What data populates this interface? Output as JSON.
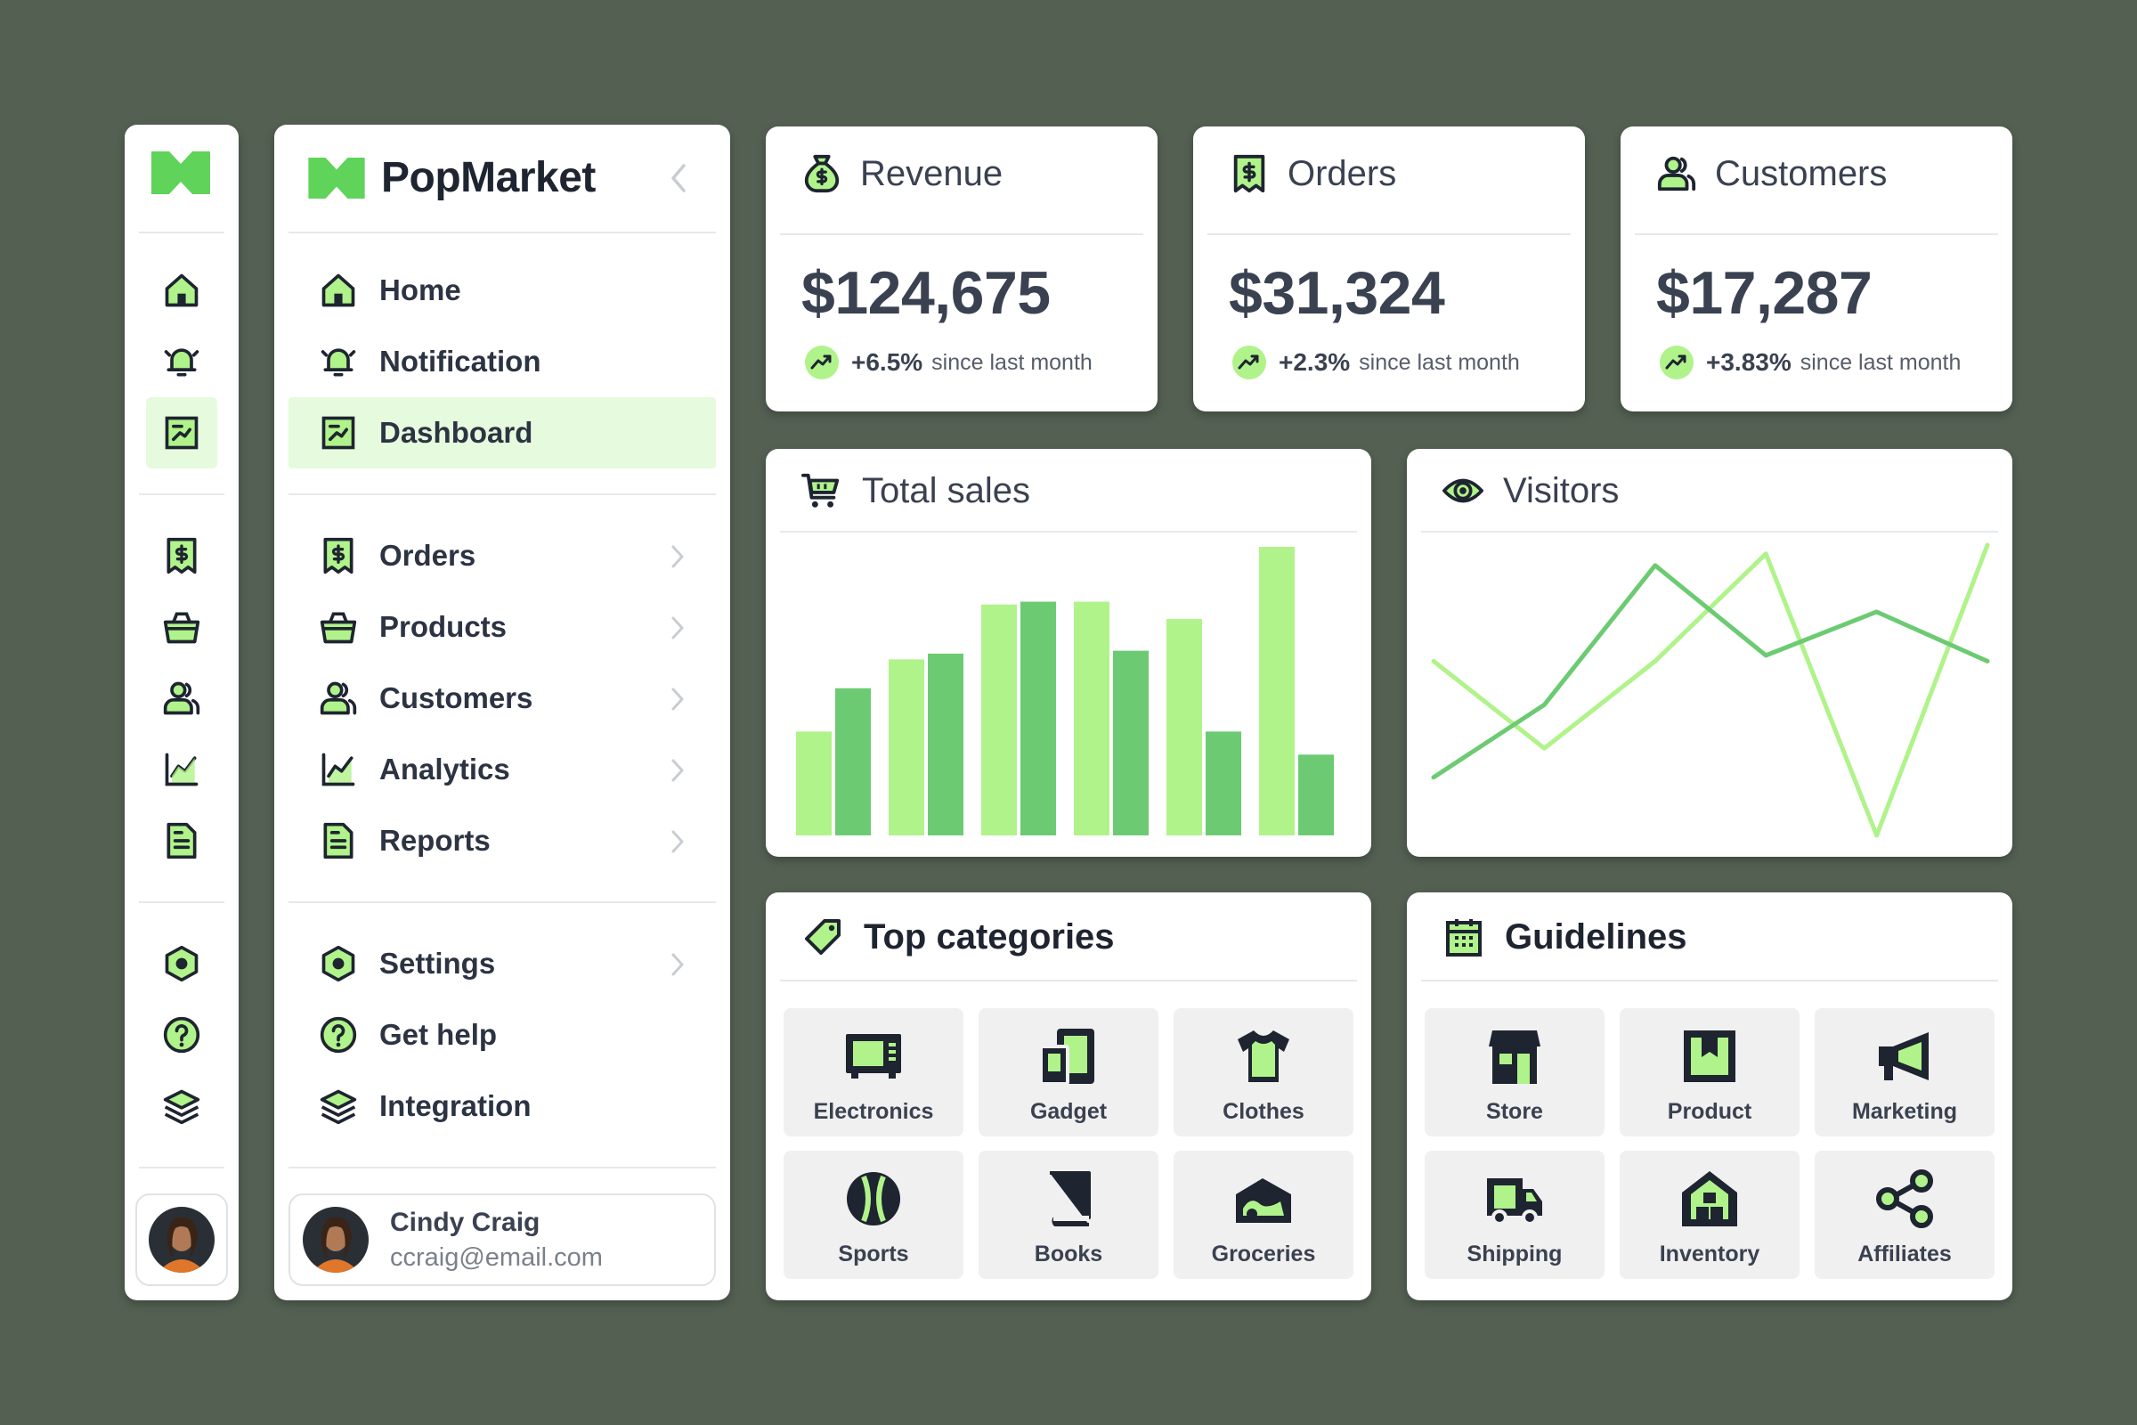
{
  "brand": {
    "name": "PopMarket"
  },
  "colors": {
    "accent": "#5fd35a",
    "bar_light": "#b0f38a",
    "bar_dark": "#6ccb72",
    "dark": "#1e2430",
    "active_bg": "#e6fbde",
    "background": "#536052"
  },
  "rail": {
    "icons": [
      "home-icon",
      "bell-icon",
      "dashboard-icon",
      "receipt-icon",
      "basket-icon",
      "users-icon",
      "chart-icon",
      "report-icon",
      "settings-icon",
      "help-icon",
      "layers-icon"
    ]
  },
  "nav": {
    "items": [
      {
        "label": "Home",
        "icon": "home-icon",
        "active": false,
        "chevron": false
      },
      {
        "label": "Notification",
        "icon": "bell-icon",
        "active": false,
        "chevron": false
      },
      {
        "label": "Dashboard",
        "icon": "dashboard-icon",
        "active": true,
        "chevron": false
      },
      {
        "label": "Orders",
        "icon": "receipt-icon",
        "active": false,
        "chevron": true
      },
      {
        "label": "Products",
        "icon": "basket-icon",
        "active": false,
        "chevron": true
      },
      {
        "label": "Customers",
        "icon": "users-icon",
        "active": false,
        "chevron": true
      },
      {
        "label": "Analytics",
        "icon": "chart-icon",
        "active": false,
        "chevron": true
      },
      {
        "label": "Reports",
        "icon": "report-icon",
        "active": false,
        "chevron": true
      },
      {
        "label": "Settings",
        "icon": "settings-icon",
        "active": false,
        "chevron": true
      },
      {
        "label": "Get help",
        "icon": "help-icon",
        "active": false,
        "chevron": false
      },
      {
        "label": "Integration",
        "icon": "layers-icon",
        "active": false,
        "chevron": false
      }
    ]
  },
  "user": {
    "name": "Cindy Craig",
    "email": "ccraig@email.com"
  },
  "stats": [
    {
      "title": "Revenue",
      "icon": "money-bag-icon",
      "value": "$124,675",
      "change": "+6.5%",
      "since": "since last month"
    },
    {
      "title": "Orders",
      "icon": "receipt-icon",
      "value": "$31,324",
      "change": "+2.3%",
      "since": "since last month"
    },
    {
      "title": "Customers",
      "icon": "users-icon",
      "value": "$17,287",
      "change": "+3.83%",
      "since": "since last month"
    }
  ],
  "panels": {
    "sales": {
      "title": "Total sales",
      "icon": "cart-icon"
    },
    "visitors": {
      "title": "Visitors",
      "icon": "eye-icon"
    },
    "categories": {
      "title": "Top categories",
      "icon": "tag-icon"
    },
    "guidelines": {
      "title": "Guidelines",
      "icon": "calendar-icon"
    }
  },
  "categories": [
    {
      "label": "Electronics",
      "icon": "microwave-icon"
    },
    {
      "label": "Gadget",
      "icon": "devices-icon"
    },
    {
      "label": "Clothes",
      "icon": "shirt-icon"
    },
    {
      "label": "Sports",
      "icon": "ball-icon"
    },
    {
      "label": "Books",
      "icon": "book-icon"
    },
    {
      "label": "Groceries",
      "icon": "grocery-icon"
    }
  ],
  "guidelines": [
    {
      "label": "Store",
      "icon": "store-icon"
    },
    {
      "label": "Product",
      "icon": "product-box-icon"
    },
    {
      "label": "Marketing",
      "icon": "megaphone-icon"
    },
    {
      "label": "Shipping",
      "icon": "truck-icon"
    },
    {
      "label": "Inventory",
      "icon": "warehouse-icon"
    },
    {
      "label": "Affiliates",
      "icon": "share-icon"
    }
  ],
  "chart_data": [
    {
      "type": "bar",
      "title": "Total sales",
      "categories": [
        "1",
        "2",
        "3",
        "4",
        "5",
        "6"
      ],
      "series": [
        {
          "values": [
            36,
            61,
            80,
            81,
            75,
            100
          ]
        },
        {
          "values": [
            51,
            63,
            81,
            64,
            36,
            28
          ]
        }
      ],
      "ylim": [
        0,
        100
      ],
      "grid": false,
      "legend": "none"
    },
    {
      "type": "line",
      "title": "Visitors",
      "x": [
        0,
        1,
        2,
        3,
        4,
        5
      ],
      "series": [
        {
          "values": [
            20,
            45,
            93,
            62,
            77,
            60
          ]
        },
        {
          "values": [
            60,
            30,
            60,
            97,
            0,
            100
          ]
        }
      ],
      "ylim": [
        0,
        100
      ],
      "grid": false,
      "legend": "none"
    }
  ]
}
